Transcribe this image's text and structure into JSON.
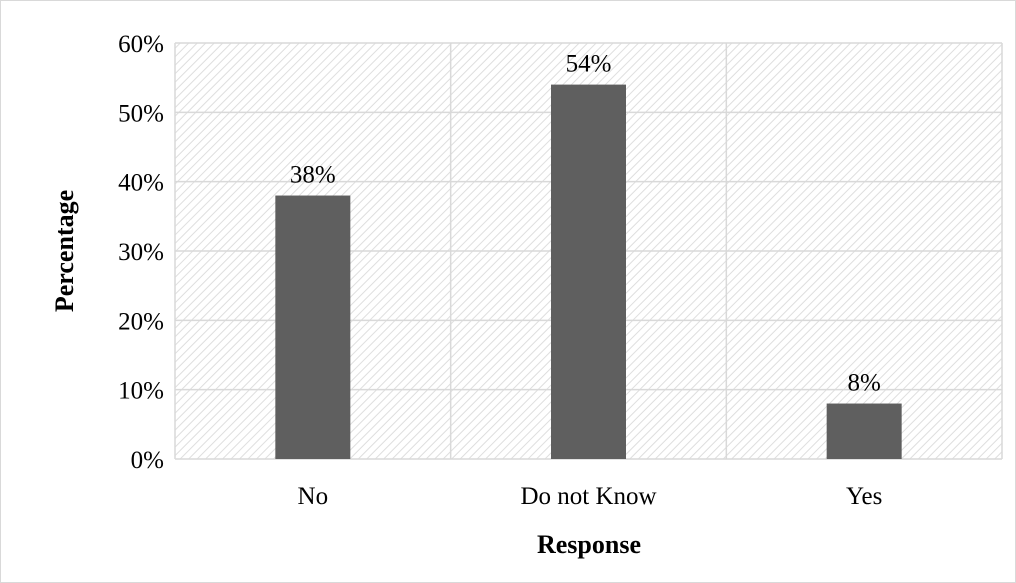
{
  "chart_data": {
    "type": "bar",
    "categories": [
      "No",
      "Do not Know",
      "Yes"
    ],
    "values": [
      38,
      54,
      8
    ],
    "data_labels": [
      "38%",
      "54%",
      "8%"
    ],
    "title": "",
    "xlabel": "Response",
    "ylabel": "Percentage",
    "ylim": [
      0,
      60
    ],
    "yticks": [
      0,
      10,
      20,
      30,
      40,
      50,
      60
    ],
    "ytick_labels": [
      "0%",
      "10%",
      "20%",
      "30%",
      "40%",
      "50%",
      "60%"
    ],
    "grid": true,
    "legend": "none",
    "bar_color": "#5f5f5f",
    "grid_color": "#d9d9d9"
  }
}
